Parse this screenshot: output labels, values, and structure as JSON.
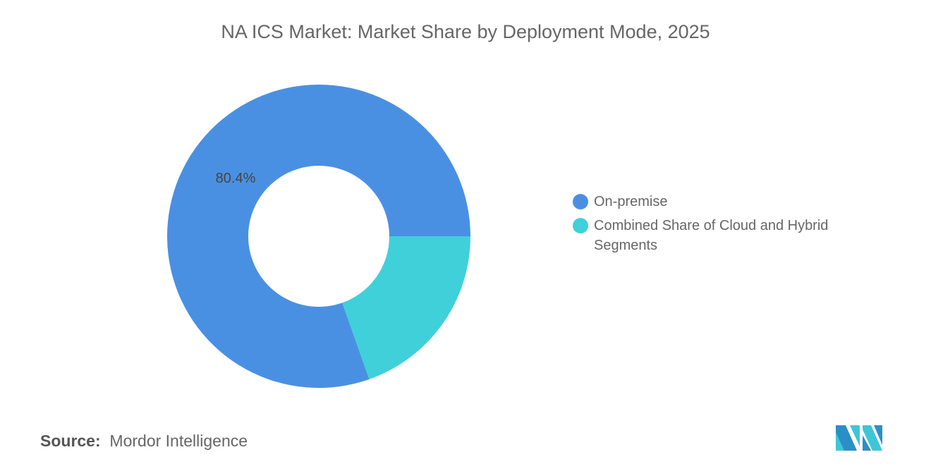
{
  "title": "NA ICS Market: Market Share by Deployment Mode, 2025",
  "chart_data": {
    "type": "pie",
    "donut": true,
    "title": "NA ICS Market: Market Share by Deployment Mode, 2025",
    "categories": [
      "On-premise",
      "Combined Share of Cloud and Hybrid Segments"
    ],
    "values": [
      80.4,
      19.6
    ],
    "colors": [
      "#4A90E2",
      "#3FD0D9"
    ],
    "data_labels": [
      "80.4%",
      ""
    ],
    "legend_position": "right"
  },
  "source": {
    "label": "Source:",
    "value": "Mordor Intelligence"
  },
  "logo": "Mordor Intelligence logo"
}
